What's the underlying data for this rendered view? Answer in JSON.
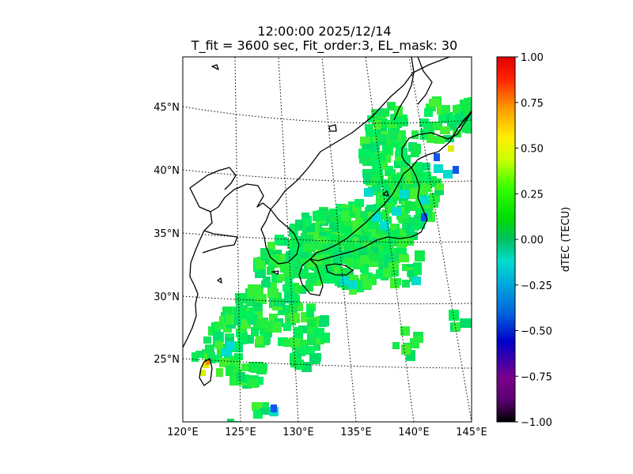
{
  "figure": {
    "title_line1": "12:00:00 2025/12/14",
    "title_line2": "T_fit = 3600 sec, Fit_order:3, EL_mask: 30"
  },
  "map": {
    "lon_labels": [
      "120°E",
      "125°E",
      "130°E",
      "135°E",
      "140°E",
      "145°E"
    ],
    "lat_labels": [
      "25°N",
      "30°N",
      "35°N",
      "40°N",
      "45°N"
    ],
    "gridline_style": "dotted",
    "extent": {
      "lon": [
        120,
        145
      ],
      "lat": [
        20,
        49
      ]
    }
  },
  "colorbar": {
    "label": "dTEC (TECU)",
    "ticks": [
      "1.00",
      "0.75",
      "0.50",
      "0.25",
      "0.00",
      "−0.25",
      "−0.50",
      "−0.75",
      "−1.00"
    ],
    "range": [
      -1,
      1
    ],
    "colormap": "nipy_spectral"
  },
  "chart_data": {
    "type": "heatmap",
    "title": "12:00:00 2025/12/14 / T_fit = 3600 sec, Fit_order:3, EL_mask: 30",
    "value_label": "dTEC (TECU)",
    "vmin": -1.0,
    "vmax": 1.0,
    "note_values": "dominant dTEC ≈ 0.05–0.15 TECU (green); localized ≈ −0.2 near 33–38°N 137–141°E; ≈ −0.5 near 41°N 142°E; ≈ +0.4 near 24°N 122°E"
  }
}
